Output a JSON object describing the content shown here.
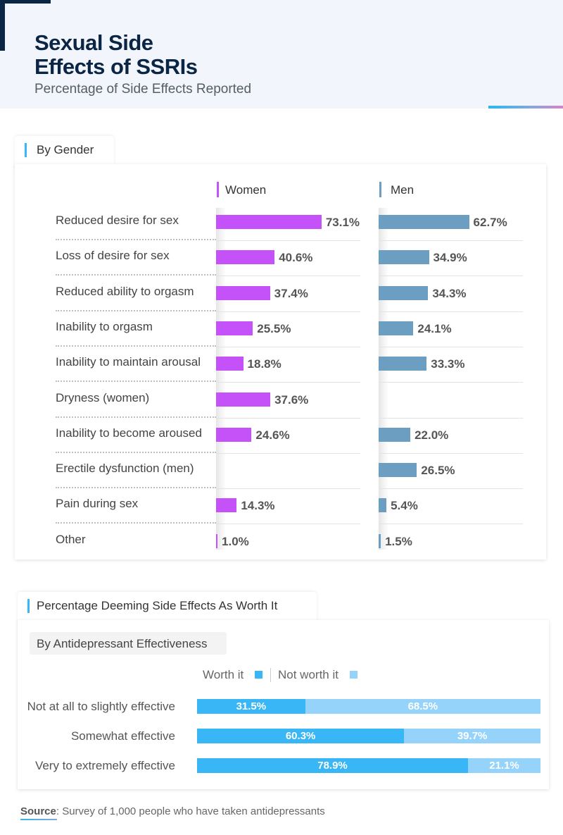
{
  "header": {
    "title_line1": "Sexual Side",
    "title_line2": "Effects of SSRIs",
    "subtitle": "Percentage of Side Effects Reported"
  },
  "colors": {
    "women": "#c452f8",
    "men": "#6b9ec1",
    "worth_it": "#38b6f6",
    "not_worth_it": "#95d3fb",
    "accent": "#38b6f6",
    "title": "#0b2545"
  },
  "chart_data": [
    {
      "type": "bar",
      "orientation": "horizontal",
      "section_title": "By Gender",
      "unit": "%",
      "categories": [
        "Reduced desire for sex",
        "Loss of desire for sex",
        "Reduced ability to orgasm",
        "Inability to orgasm",
        "Inability to maintain arousal",
        "Dryness (women)",
        "Inability to become aroused",
        "Erectile dysfunction (men)",
        "Pain during sex",
        "Other"
      ],
      "series": [
        {
          "name": "Women",
          "values": [
            73.1,
            40.6,
            37.4,
            25.5,
            18.8,
            37.6,
            24.6,
            null,
            14.3,
            1.0
          ],
          "labels": [
            "73.1%",
            "40.6%",
            "37.4%",
            "25.5%",
            "18.8%",
            "37.6%",
            "24.6%",
            "",
            "14.3%",
            "1.0%"
          ]
        },
        {
          "name": "Men",
          "values": [
            62.7,
            34.9,
            34.3,
            24.1,
            33.3,
            null,
            22.0,
            26.5,
            5.4,
            1.5
          ],
          "labels": [
            "62.7%",
            "34.9%",
            "34.3%",
            "24.1%",
            "33.3%",
            "",
            "22.0%",
            "26.5%",
            "5.4%",
            "1.5%"
          ]
        }
      ]
    },
    {
      "type": "bar",
      "orientation": "horizontal",
      "stacked": true,
      "section_title": "Percentage Deeming Side Effects As Worth It",
      "subtitle": "By Antidepressant Effectiveness",
      "unit": "%",
      "legend_placement": "top",
      "categories": [
        "Not at all to slightly effective",
        "Somewhat effective",
        "Very to extremely effective"
      ],
      "series": [
        {
          "name": "Worth it",
          "values": [
            31.5,
            60.3,
            78.9
          ],
          "labels": [
            "31.5%",
            "60.3%",
            "78.9%"
          ]
        },
        {
          "name": "Not worth it",
          "values": [
            68.5,
            39.7,
            21.1
          ],
          "labels": [
            "68.5%",
            "39.7%",
            "21.1%"
          ]
        }
      ]
    }
  ],
  "source": {
    "label": "Source",
    "text": ": Survey of 1,000 people who have taken antidepressants"
  }
}
